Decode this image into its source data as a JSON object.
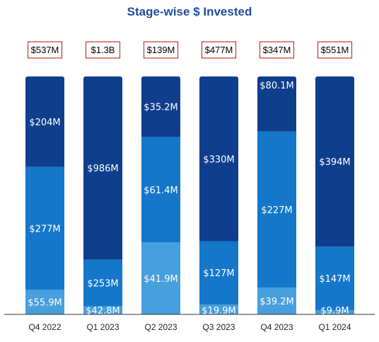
{
  "chart_data": {
    "type": "bar",
    "stacked": true,
    "normalized": true,
    "title": "Stage-wise $ Invested",
    "categories": [
      "Q4 2022",
      "Q1 2023",
      "Q2 2023",
      "Q3 2023",
      "Q4 2023",
      "Q1 2024"
    ],
    "totals": [
      "$537M",
      "$1.3B",
      "$139M",
      "$477M",
      "$347M",
      "$551M"
    ],
    "series": [
      {
        "color": "#479fdd",
        "values": [
          55.9,
          42.8,
          41.9,
          19.9,
          39.2,
          9.9
        ],
        "labels": [
          "$55.9M",
          "$42.8M",
          "$41.9M",
          "$19.9M",
          "$39.2M",
          "$9.9M"
        ]
      },
      {
        "color": "#1577c9",
        "values": [
          277,
          253,
          61.4,
          127,
          227,
          147
        ],
        "labels": [
          "$277M",
          "$253M",
          "$61.4M",
          "$127M",
          "$227M",
          "$147M"
        ]
      },
      {
        "color": "#0f3e8d",
        "values": [
          204,
          986,
          35.2,
          330,
          80.1,
          394
        ],
        "labels": [
          "$204M",
          "$986M",
          "$35.2M",
          "$330M",
          "$80.1M",
          "$394M"
        ]
      }
    ],
    "legend": "none",
    "grid": false
  }
}
